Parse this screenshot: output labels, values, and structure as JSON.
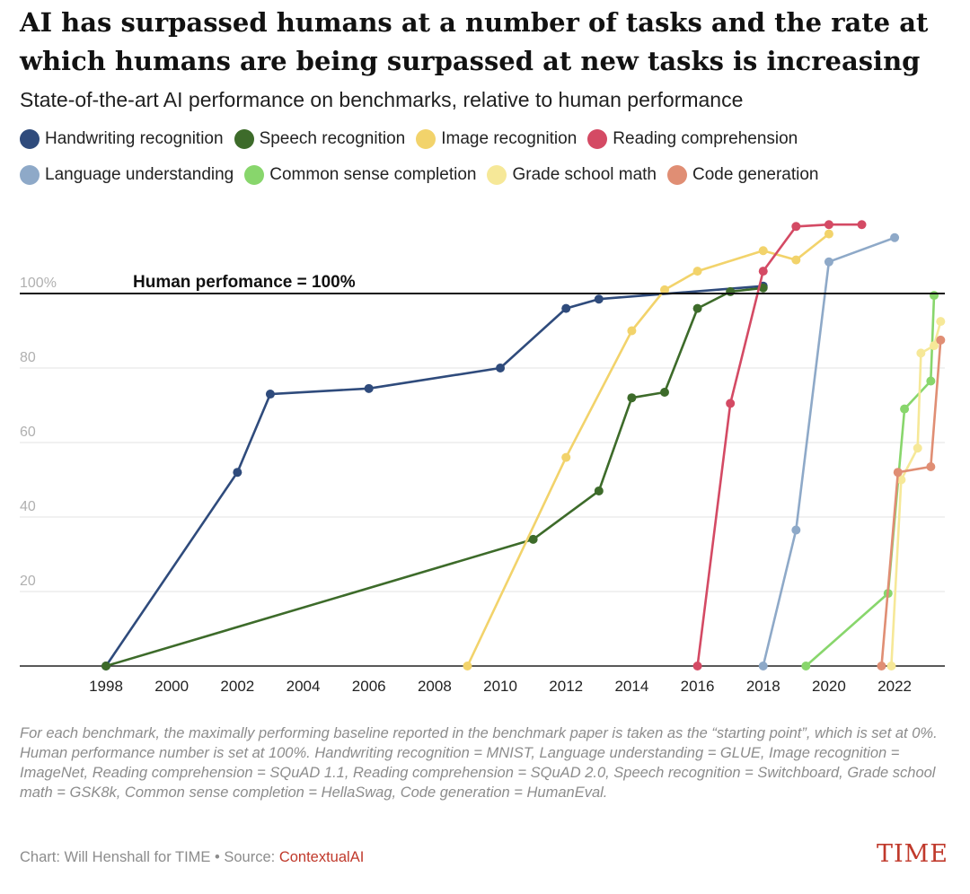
{
  "title": "AI has surpassed humans at a number of tasks and the rate at which humans are being surpassed at new tasks is increasing",
  "subtitle": "State-of-the-art AI performance on benchmarks, relative to human performance",
  "legend_rows": [
    [
      {
        "name": "Handwriting recognition",
        "color": "#2f4b7c"
      },
      {
        "name": "Speech recognition",
        "color": "#3d6b2a"
      },
      {
        "name": "Image recognition",
        "color": "#f2d36b"
      },
      {
        "name": "Reading comprehension",
        "color": "#d44a64"
      }
    ],
    [
      {
        "name": "Language understanding",
        "color": "#8ea9c8"
      },
      {
        "name": "Common sense completion",
        "color": "#88d66c"
      },
      {
        "name": "Grade school math",
        "color": "#f6e898"
      },
      {
        "name": "Code generation",
        "color": "#e08e74"
      }
    ]
  ],
  "footnote": "For each benchmark, the maximally performing baseline reported in the benchmark paper is taken as the “starting point”, which is set at 0%. Human performance number is set at 100%. Handwriting recognition = MNIST, Language understanding = GLUE, Image recognition = ImageNet, Reading comprehension = SQuAD 1.1, Reading comprehension = SQuAD 2.0, Speech recognition = Switchboard, Grade school math = GSK8k, Common sense completion = HellaSwag, Code generation = HumanEval.",
  "credit": "Chart: Will Henshall for TIME • Source: ",
  "source_name": "ContextualAI",
  "brand": "TIME",
  "chart_data": {
    "type": "line",
    "xlim": [
      1997,
      2023.8
    ],
    "ylim": [
      0,
      120
    ],
    "x_ticks": [
      "1998",
      "2000",
      "2002",
      "2004",
      "2006",
      "2008",
      "2010",
      "2012",
      "2014",
      "2016",
      "2018",
      "2020",
      "2022"
    ],
    "y_ticks": [
      {
        "value": 20,
        "label": "20"
      },
      {
        "value": 40,
        "label": "40"
      },
      {
        "value": 60,
        "label": "60"
      },
      {
        "value": 80,
        "label": "80"
      },
      {
        "value": 100,
        "label": "100%"
      }
    ],
    "reference_line": {
      "value": 100,
      "label": "Human perfomance = 100%"
    },
    "grid": true,
    "series": [
      {
        "name": "Handwriting recognition",
        "color": "#2f4b7c",
        "points": [
          [
            1998,
            0
          ],
          [
            2002,
            52
          ],
          [
            2003,
            73
          ],
          [
            2006,
            74.5
          ],
          [
            2010,
            80
          ],
          [
            2012,
            96
          ],
          [
            2013,
            98.5
          ],
          [
            2018,
            102
          ]
        ]
      },
      {
        "name": "Speech recognition",
        "color": "#3d6b2a",
        "points": [
          [
            1998,
            0
          ],
          [
            2011,
            34
          ],
          [
            2013,
            47
          ],
          [
            2014,
            72
          ],
          [
            2015,
            73.5
          ],
          [
            2016,
            96
          ],
          [
            2017,
            100.5
          ],
          [
            2018,
            101.5
          ]
        ]
      },
      {
        "name": "Image recognition",
        "color": "#f2d36b",
        "points": [
          [
            2009,
            0
          ],
          [
            2012,
            56
          ],
          [
            2014,
            90
          ],
          [
            2015,
            101
          ],
          [
            2016,
            106
          ],
          [
            2018,
            111.5
          ],
          [
            2019,
            109
          ],
          [
            2020,
            116
          ]
        ]
      },
      {
        "name": "Reading comprehension",
        "color": "#d44a64",
        "points": [
          [
            2016,
            0
          ],
          [
            2017,
            70.5
          ],
          [
            2018,
            106
          ],
          [
            2019,
            118
          ],
          [
            2020,
            118.5
          ],
          [
            2021,
            118.5
          ]
        ]
      },
      {
        "name": "Language understanding",
        "color": "#8ea9c8",
        "points": [
          [
            2018,
            0
          ],
          [
            2019,
            36.5
          ],
          [
            2020,
            108.5
          ],
          [
            2022,
            115
          ]
        ]
      },
      {
        "name": "Common sense completion",
        "color": "#88d66c",
        "points": [
          [
            2019.3,
            0
          ],
          [
            2021.8,
            19.5
          ],
          [
            2022.3,
            69
          ],
          [
            2023.1,
            76.5
          ],
          [
            2023.2,
            99.5
          ]
        ]
      },
      {
        "name": "Grade school math",
        "color": "#f6e898",
        "points": [
          [
            2021.9,
            0
          ],
          [
            2022.2,
            50
          ],
          [
            2022.7,
            58.5
          ],
          [
            2022.8,
            84
          ],
          [
            2023.2,
            86
          ],
          [
            2023.4,
            92.5
          ]
        ]
      },
      {
        "name": "Code generation",
        "color": "#e08e74",
        "points": [
          [
            2021.6,
            0
          ],
          [
            2022.1,
            52
          ],
          [
            2023.1,
            53.5
          ],
          [
            2023.4,
            87.5
          ]
        ]
      }
    ]
  }
}
